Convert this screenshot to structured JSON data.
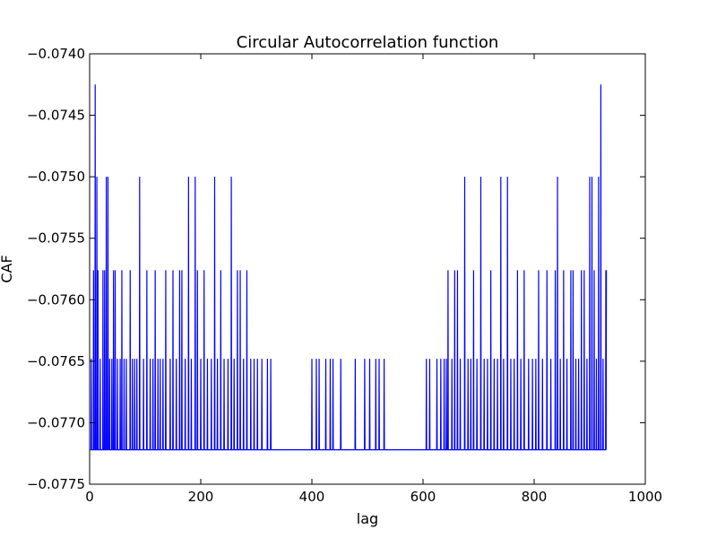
{
  "chart_data": {
    "type": "line",
    "title": "Circular Autocorrelation function",
    "xlabel": "lag",
    "ylabel": "CAF",
    "xlim": [
      0,
      1000
    ],
    "ylim": [
      -0.0775,
      -0.074
    ],
    "x_ticks": [
      0,
      200,
      400,
      600,
      800,
      1000
    ],
    "x_tick_labels": [
      "0",
      "200",
      "400",
      "600",
      "800",
      "1000"
    ],
    "y_ticks": [
      -0.0775,
      -0.077,
      -0.0765,
      -0.076,
      -0.0755,
      -0.075,
      -0.0745,
      -0.074
    ],
    "y_tick_labels": [
      "−0.0775",
      "−0.0770",
      "−0.0765",
      "−0.0760",
      "−0.0755",
      "−0.0750",
      "−0.0745",
      "−0.0740"
    ],
    "grid": false,
    "legend": "none",
    "line_color": "#0000ff",
    "series": [
      {
        "x_start": 1,
        "x_end": 930,
        "baseline": -0.07722,
        "spikes": [
          [
            3,
            -0.07648
          ],
          [
            7,
            -0.07576
          ],
          [
            10,
            -0.07425
          ],
          [
            13,
            -0.075
          ],
          [
            15,
            -0.07576
          ],
          [
            19,
            -0.07648
          ],
          [
            24,
            -0.07576
          ],
          [
            27,
            -0.07576
          ],
          [
            30,
            -0.075
          ],
          [
            33,
            -0.075
          ],
          [
            36,
            -0.07648
          ],
          [
            40,
            -0.07648
          ],
          [
            43,
            -0.07576
          ],
          [
            46,
            -0.07576
          ],
          [
            50,
            -0.07648
          ],
          [
            55,
            -0.07648
          ],
          [
            58,
            -0.07576
          ],
          [
            62,
            -0.07648
          ],
          [
            66,
            -0.07648
          ],
          [
            73,
            -0.07576
          ],
          [
            77,
            -0.07648
          ],
          [
            81,
            -0.07648
          ],
          [
            85,
            -0.07648
          ],
          [
            90,
            -0.075
          ],
          [
            97,
            -0.07648
          ],
          [
            103,
            -0.07576
          ],
          [
            109,
            -0.07648
          ],
          [
            114,
            -0.07648
          ],
          [
            118,
            -0.07576
          ],
          [
            123,
            -0.07648
          ],
          [
            127,
            -0.07648
          ],
          [
            132,
            -0.07648
          ],
          [
            137,
            -0.07576
          ],
          [
            145,
            -0.07648
          ],
          [
            150,
            -0.07576
          ],
          [
            156,
            -0.07648
          ],
          [
            162,
            -0.07576
          ],
          [
            166,
            -0.07576
          ],
          [
            172,
            -0.07648
          ],
          [
            178,
            -0.075
          ],
          [
            183,
            -0.07648
          ],
          [
            190,
            -0.075
          ],
          [
            194,
            -0.07576
          ],
          [
            200,
            -0.07648
          ],
          [
            206,
            -0.07576
          ],
          [
            212,
            -0.07648
          ],
          [
            219,
            -0.07648
          ],
          [
            225,
            -0.075
          ],
          [
            230,
            -0.07648
          ],
          [
            236,
            -0.07576
          ],
          [
            242,
            -0.07648
          ],
          [
            249,
            -0.07648
          ],
          [
            255,
            -0.075
          ],
          [
            260,
            -0.07648
          ],
          [
            266,
            -0.07576
          ],
          [
            271,
            -0.07576
          ],
          [
            277,
            -0.07648
          ],
          [
            283,
            -0.07576
          ],
          [
            290,
            -0.07648
          ],
          [
            296,
            -0.07648
          ],
          [
            302,
            -0.07648
          ],
          [
            310,
            -0.07648
          ],
          [
            320,
            -0.07648
          ],
          [
            326,
            -0.07648
          ],
          [
            400,
            -0.07648
          ],
          [
            408,
            -0.07648
          ],
          [
            413,
            -0.07648
          ],
          [
            425,
            -0.07648
          ],
          [
            433,
            -0.07648
          ],
          [
            438,
            -0.07648
          ],
          [
            452,
            -0.07648
          ],
          [
            478,
            -0.07648
          ],
          [
            495,
            -0.07648
          ],
          [
            504,
            -0.07648
          ],
          [
            515,
            -0.07648
          ],
          [
            521,
            -0.07648
          ],
          [
            530,
            -0.07648
          ],
          [
            606,
            -0.07648
          ],
          [
            612,
            -0.07648
          ],
          [
            625,
            -0.07648
          ],
          [
            632,
            -0.07648
          ],
          [
            638,
            -0.07648
          ],
          [
            642,
            -0.07648
          ],
          [
            645,
            -0.07576
          ],
          [
            652,
            -0.07648
          ],
          [
            657,
            -0.07576
          ],
          [
            662,
            -0.07576
          ],
          [
            667,
            -0.07648
          ],
          [
            675,
            -0.075
          ],
          [
            681,
            -0.07648
          ],
          [
            686,
            -0.07648
          ],
          [
            691,
            -0.07576
          ],
          [
            697,
            -0.07648
          ],
          [
            704,
            -0.075
          ],
          [
            710,
            -0.07648
          ],
          [
            716,
            -0.07648
          ],
          [
            722,
            -0.07576
          ],
          [
            728,
            -0.07648
          ],
          [
            734,
            -0.07648
          ],
          [
            740,
            -0.075
          ],
          [
            745,
            -0.07648
          ],
          [
            752,
            -0.075
          ],
          [
            758,
            -0.07648
          ],
          [
            764,
            -0.07648
          ],
          [
            770,
            -0.07576
          ],
          [
            776,
            -0.07648
          ],
          [
            782,
            -0.07576
          ],
          [
            790,
            -0.07648
          ],
          [
            797,
            -0.07648
          ],
          [
            803,
            -0.07648
          ],
          [
            808,
            -0.07576
          ],
          [
            815,
            -0.07648
          ],
          [
            823,
            -0.07576
          ],
          [
            830,
            -0.07648
          ],
          [
            838,
            -0.07576
          ],
          [
            842,
            -0.075
          ],
          [
            847,
            -0.07648
          ],
          [
            853,
            -0.07576
          ],
          [
            859,
            -0.07648
          ],
          [
            866,
            -0.07576
          ],
          [
            870,
            -0.07576
          ],
          [
            875,
            -0.07648
          ],
          [
            880,
            -0.07648
          ],
          [
            885,
            -0.07576
          ],
          [
            890,
            -0.07576
          ],
          [
            895,
            -0.07648
          ],
          [
            900,
            -0.075
          ],
          [
            904,
            -0.075
          ],
          [
            908,
            -0.07576
          ],
          [
            912,
            -0.07648
          ],
          [
            916,
            -0.075
          ],
          [
            920,
            -0.07425
          ],
          [
            924,
            -0.07648
          ],
          [
            929,
            -0.07576
          ]
        ]
      }
    ]
  }
}
